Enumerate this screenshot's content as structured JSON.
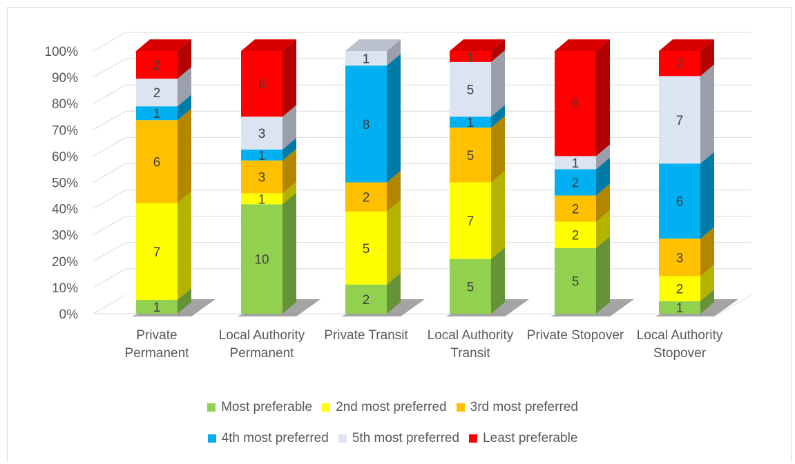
{
  "chart_data": {
    "type": "bar",
    "stacked": true,
    "percent_stacked": true,
    "three_d": true,
    "categories": [
      "Private Permanent",
      "Local Authority Permanent",
      "Private Transit",
      "Local Authority Transit",
      "Private Stopover",
      "Local Authority Stopover"
    ],
    "series": [
      {
        "name": "Most preferable",
        "color": "#92d050",
        "values": [
          1,
          10,
          2,
          5,
          5,
          1
        ]
      },
      {
        "name": "2nd most preferred",
        "color": "#ffff00",
        "values": [
          7,
          1,
          5,
          7,
          2,
          2
        ]
      },
      {
        "name": "3rd most preferred",
        "color": "#ffc000",
        "values": [
          6,
          3,
          2,
          5,
          2,
          3
        ]
      },
      {
        "name": "4th most preferred",
        "color": "#00b0f0",
        "values": [
          1,
          1,
          8,
          1,
          2,
          6
        ]
      },
      {
        "name": "5th most preferred",
        "color": "#dce3f1",
        "values": [
          2,
          3,
          1,
          5,
          1,
          7
        ]
      },
      {
        "name": "Least preferable",
        "color": "#ff0000",
        "values": [
          2,
          6,
          0,
          1,
          8,
          2
        ]
      }
    ],
    "y_ticks": [
      "0%",
      "10%",
      "20%",
      "30%",
      "40%",
      "50%",
      "60%",
      "70%",
      "80%",
      "90%",
      "100%"
    ],
    "ylim": [
      0,
      100
    ],
    "grid": true,
    "legend_position": "bottom"
  }
}
